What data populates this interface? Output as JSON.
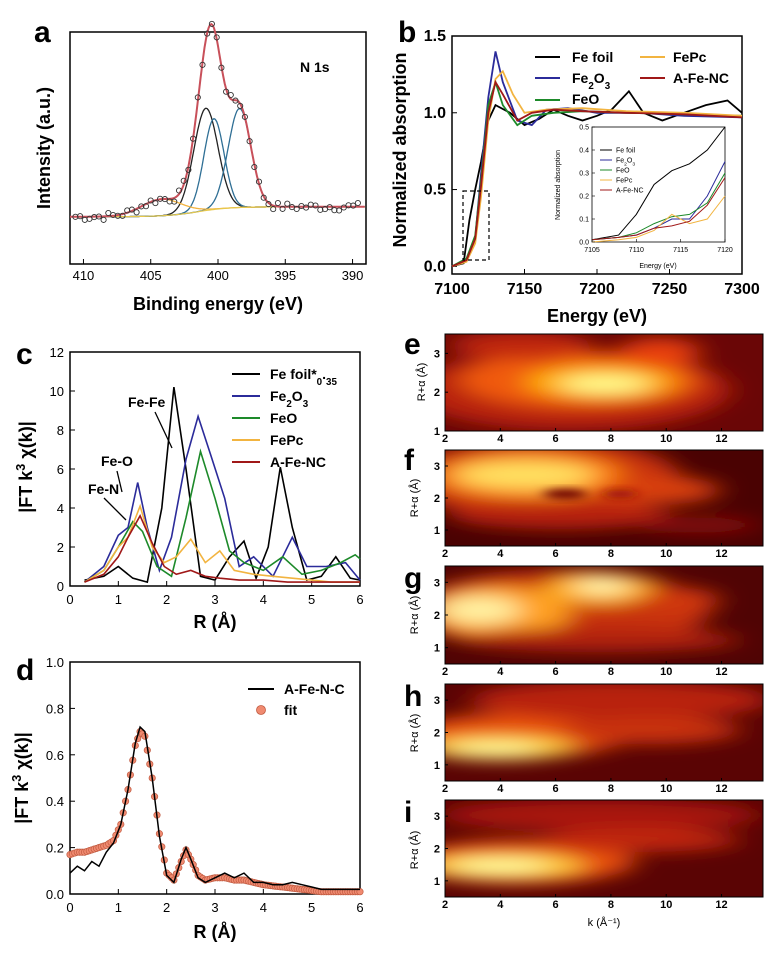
{
  "colors": {
    "fe_foil": "#000000",
    "fe2o3": "#2b2b9a",
    "feo": "#1d8a2a",
    "fepc": "#f2b440",
    "afenc": "#a01818",
    "fit": "#f08a70",
    "peak_fit": "#2f6f95"
  },
  "panel_letters": [
    "a",
    "b",
    "c",
    "d",
    "e",
    "f",
    "g",
    "h",
    "i"
  ],
  "chart_data": [
    {
      "id": "a",
      "type": "line",
      "label": "N 1s",
      "xlabel": "Binding energy (eV)",
      "ylabel": "Intensity (a.u.)",
      "xlim": [
        411,
        389
      ],
      "xticks": [
        "410",
        "405",
        "400",
        "395",
        "390"
      ],
      "peaks": [
        {
          "center": 400.9,
          "height": 0.62,
          "width": 0.9
        },
        {
          "center": 400.3,
          "height": 0.55,
          "width": 0.75
        },
        {
          "center": 398.4,
          "height": 0.6,
          "width": 0.85
        },
        {
          "center": 404.2,
          "height": 0.1,
          "width": 1.5
        }
      ]
    },
    {
      "id": "b",
      "type": "line",
      "xlabel": "Energy (eV)",
      "ylabel": "Normalized absorption",
      "xlim": [
        7100,
        7300
      ],
      "ylim": [
        -0.05,
        1.5
      ],
      "xticks": [
        "7100",
        "7150",
        "7200",
        "7250",
        "7300"
      ],
      "yticks": [
        "0.0",
        "0.5",
        "1.0",
        "1.5"
      ],
      "series": [
        {
          "name": "Fe foil",
          "x": [
            7100,
            7108,
            7112,
            7116,
            7120,
            7125,
            7130,
            7140,
            7150,
            7160,
            7170,
            7180,
            7190,
            7200,
            7210,
            7222,
            7232,
            7245,
            7260,
            7275,
            7290,
            7300
          ],
          "y": [
            0,
            0.02,
            0.3,
            0.5,
            0.68,
            0.95,
            1.05,
            1.0,
            0.92,
            0.96,
            1.02,
            0.98,
            0.95,
            0.98,
            1.02,
            1.14,
            1.0,
            0.95,
            1.0,
            1.05,
            1.08,
            1.0
          ]
        },
        {
          "name": "Fe2O3",
          "x": [
            7100,
            7110,
            7116,
            7120,
            7125,
            7130,
            7135,
            7145,
            7155,
            7165,
            7180,
            7200,
            7230,
            7260,
            7300
          ],
          "y": [
            0,
            0.04,
            0.18,
            0.6,
            1.1,
            1.4,
            1.2,
            0.95,
            0.92,
            1.02,
            1.03,
            1.0,
            1.0,
            0.98,
            0.97
          ]
        },
        {
          "name": "FeO",
          "x": [
            7100,
            7110,
            7116,
            7120,
            7125,
            7130,
            7135,
            7145,
            7155,
            7170,
            7190,
            7220,
            7260,
            7300
          ],
          "y": [
            0,
            0.05,
            0.2,
            0.55,
            1.05,
            1.2,
            1.05,
            0.92,
            0.98,
            1.0,
            1.01,
            1.0,
            0.99,
            0.98
          ]
        },
        {
          "name": "FePc",
          "x": [
            7100,
            7110,
            7116,
            7120,
            7125,
            7130,
            7135,
            7142,
            7150,
            7165,
            7190,
            7220,
            7260,
            7300
          ],
          "y": [
            0,
            0.03,
            0.15,
            0.45,
            0.95,
            1.22,
            1.27,
            1.12,
            1.0,
            1.02,
            1.03,
            1.01,
            1.0,
            0.98
          ]
        },
        {
          "name": "A-Fe-NC",
          "x": [
            7100,
            7110,
            7116,
            7120,
            7125,
            7130,
            7135,
            7145,
            7155,
            7170,
            7190,
            7220,
            7260,
            7300
          ],
          "y": [
            0,
            0.04,
            0.18,
            0.52,
            1.0,
            1.2,
            1.12,
            0.95,
            1.0,
            1.02,
            1.01,
            1.0,
            0.99,
            0.97
          ]
        }
      ],
      "inset": {
        "xlabel": "Energy (eV)",
        "ylabel": "Normalized absorption",
        "xlim": [
          7105,
          7120
        ],
        "ylim": [
          0,
          0.5
        ],
        "xticks": [
          "7105",
          "7110",
          "7115",
          "7120"
        ],
        "yticks": [
          "0.0",
          "0.1",
          "0.2",
          "0.3",
          "0.4",
          "0.5"
        ],
        "legend": [
          "Fe foil",
          "Fe2O3",
          "FeO",
          "FePc",
          "A-Fe-NC"
        ]
      }
    },
    {
      "id": "c",
      "type": "line",
      "xlabel": "R (Å)",
      "ylabel": "|FT k3 χ(k)|",
      "xlim": [
        0,
        6
      ],
      "ylim": [
        0,
        12
      ],
      "xticks": [
        "0",
        "1",
        "2",
        "3",
        "4",
        "5",
        "6"
      ],
      "yticks": [
        "0",
        "2",
        "4",
        "6",
        "8",
        "10",
        "12"
      ],
      "annotations": [
        "Fe-Fe",
        "Fe-O",
        "Fe-N"
      ],
      "series": [
        {
          "name": "Fe foil*0.35",
          "x": [
            0.3,
            0.7,
            1.0,
            1.3,
            1.6,
            1.9,
            2.15,
            2.4,
            2.7,
            3.0,
            3.3,
            3.6,
            3.85,
            4.1,
            4.35,
            4.6,
            4.9,
            5.2,
            5.5,
            5.8,
            6.0
          ],
          "y": [
            0.3,
            0.5,
            1.0,
            0.4,
            0.2,
            4.0,
            10.2,
            6.0,
            0.5,
            0.3,
            1.5,
            2.3,
            0.4,
            2.0,
            6.1,
            3.0,
            0.3,
            0.5,
            1.5,
            0.4,
            0.3
          ]
        },
        {
          "name": "Fe2O3",
          "x": [
            0.3,
            0.7,
            1.0,
            1.2,
            1.4,
            1.6,
            1.85,
            2.1,
            2.4,
            2.65,
            2.9,
            3.2,
            3.5,
            3.8,
            4.2,
            4.6,
            4.9,
            5.3,
            5.7,
            6.0
          ],
          "y": [
            0.2,
            1.0,
            2.6,
            3.0,
            5.3,
            3.0,
            0.8,
            2.5,
            6.5,
            8.7,
            6.8,
            4.5,
            1.0,
            1.5,
            0.5,
            2.5,
            1.0,
            1.0,
            1.2,
            0.3
          ]
        },
        {
          "name": "FeO",
          "x": [
            0.3,
            0.7,
            1.0,
            1.3,
            1.5,
            1.8,
            2.1,
            2.4,
            2.7,
            3.0,
            3.3,
            3.6,
            4.0,
            4.4,
            4.8,
            5.2,
            5.6,
            5.9,
            6.0
          ],
          "y": [
            0.2,
            0.8,
            2.0,
            3.3,
            2.8,
            1.0,
            0.5,
            3.5,
            6.9,
            4.5,
            1.8,
            1.2,
            0.8,
            1.5,
            0.6,
            0.8,
            1.2,
            1.6,
            1.4
          ]
        },
        {
          "name": "FePc",
          "x": [
            0.3,
            0.7,
            1.0,
            1.2,
            1.45,
            1.7,
            1.95,
            2.2,
            2.5,
            2.8,
            3.1,
            3.4,
            3.8,
            4.2,
            4.6,
            5.0,
            5.4,
            6.0
          ],
          "y": [
            0.2,
            0.8,
            2.0,
            2.5,
            4.1,
            2.0,
            1.2,
            1.5,
            2.4,
            1.2,
            1.8,
            0.8,
            0.6,
            0.5,
            0.4,
            0.3,
            0.2,
            0.2
          ]
        },
        {
          "name": "A-Fe-NC",
          "x": [
            0.3,
            0.7,
            1.0,
            1.2,
            1.45,
            1.7,
            1.95,
            2.2,
            2.5,
            2.8,
            3.1,
            3.5,
            4.0,
            4.5,
            5.0,
            6.0
          ],
          "y": [
            0.2,
            0.6,
            1.5,
            2.5,
            3.6,
            2.2,
            1.0,
            0.6,
            0.8,
            0.5,
            0.4,
            0.3,
            0.3,
            0.2,
            0.2,
            0.2
          ]
        }
      ]
    },
    {
      "id": "d",
      "type": "line",
      "xlabel": "R (Å)",
      "ylabel": "|FT k3 χ(k)|",
      "xlim": [
        0,
        6
      ],
      "ylim": [
        0,
        1.0
      ],
      "xticks": [
        "0",
        "1",
        "2",
        "3",
        "4",
        "5",
        "6"
      ],
      "yticks": [
        "0.0",
        "0.2",
        "0.4",
        "0.6",
        "0.8",
        "1.0"
      ],
      "series": [
        {
          "name": "A-Fe-N-C",
          "x": [
            0,
            0.15,
            0.3,
            0.45,
            0.6,
            0.75,
            0.9,
            1.05,
            1.2,
            1.35,
            1.45,
            1.55,
            1.7,
            1.85,
            2.0,
            2.15,
            2.3,
            2.4,
            2.5,
            2.65,
            2.8,
            3.0,
            3.2,
            3.4,
            3.6,
            3.8,
            4.0,
            4.2,
            4.4,
            4.6,
            4.8,
            5.0,
            5.2,
            5.5,
            6.0
          ],
          "y": [
            0.09,
            0.12,
            0.1,
            0.14,
            0.12,
            0.18,
            0.22,
            0.3,
            0.45,
            0.65,
            0.72,
            0.7,
            0.5,
            0.25,
            0.08,
            0.05,
            0.15,
            0.2,
            0.15,
            0.07,
            0.05,
            0.07,
            0.09,
            0.07,
            0.09,
            0.05,
            0.05,
            0.04,
            0.04,
            0.05,
            0.04,
            0.03,
            0.02,
            0.02,
            0.02
          ]
        },
        {
          "name": "fit",
          "x": [
            0,
            0.15,
            0.3,
            0.45,
            0.6,
            0.75,
            0.9,
            1.05,
            1.2,
            1.35,
            1.45,
            1.55,
            1.7,
            1.85,
            2.0,
            2.15,
            2.3,
            2.4,
            2.5,
            2.65,
            2.8,
            3.0,
            3.2,
            3.4,
            3.6,
            3.8,
            4.0,
            4.4,
            4.8,
            5.2,
            5.6,
            6.0
          ],
          "y": [
            0.17,
            0.18,
            0.18,
            0.19,
            0.2,
            0.21,
            0.23,
            0.3,
            0.45,
            0.64,
            0.7,
            0.68,
            0.5,
            0.26,
            0.09,
            0.06,
            0.14,
            0.19,
            0.15,
            0.08,
            0.06,
            0.07,
            0.07,
            0.06,
            0.06,
            0.05,
            0.04,
            0.03,
            0.02,
            0.01,
            0.01,
            0.01
          ]
        }
      ]
    },
    {
      "id": "e",
      "type": "heatmap",
      "xlim": [
        2,
        13.5
      ],
      "ylim": [
        1,
        3.5
      ],
      "ylabel": "R+α (Å)",
      "xticks": [
        "2",
        "4",
        "6",
        "8",
        "10",
        "12"
      ],
      "yticks": [
        "1",
        "2",
        "3"
      ]
    },
    {
      "id": "f",
      "type": "heatmap",
      "xlim": [
        2,
        13.5
      ],
      "ylim": [
        0.5,
        3.5
      ],
      "ylabel": "R+α (Å)",
      "xticks": [
        "2",
        "4",
        "6",
        "8",
        "10",
        "12"
      ],
      "yticks": [
        "1",
        "2",
        "3"
      ]
    },
    {
      "id": "g",
      "type": "heatmap",
      "xlim": [
        2,
        13.5
      ],
      "ylim": [
        0.5,
        3.5
      ],
      "ylabel": "R+α (Å)",
      "xticks": [
        "2",
        "4",
        "6",
        "8",
        "10",
        "12"
      ],
      "yticks": [
        "1",
        "2",
        "3"
      ]
    },
    {
      "id": "h",
      "type": "heatmap",
      "xlim": [
        2,
        13.5
      ],
      "ylim": [
        0.5,
        3.5
      ],
      "ylabel": "R+α (Å)",
      "xticks": [
        "2",
        "4",
        "6",
        "8",
        "10",
        "12"
      ],
      "yticks": [
        "1",
        "2",
        "3"
      ]
    },
    {
      "id": "i",
      "type": "heatmap",
      "xlim": [
        2,
        13.5
      ],
      "ylim": [
        0.5,
        3.5
      ],
      "ylabel": "R+α (Å)",
      "xlabel": "k (Å⁻¹)",
      "xticks": [
        "2",
        "4",
        "6",
        "8",
        "10",
        "12"
      ],
      "yticks": [
        "1",
        "2",
        "3"
      ]
    }
  ]
}
